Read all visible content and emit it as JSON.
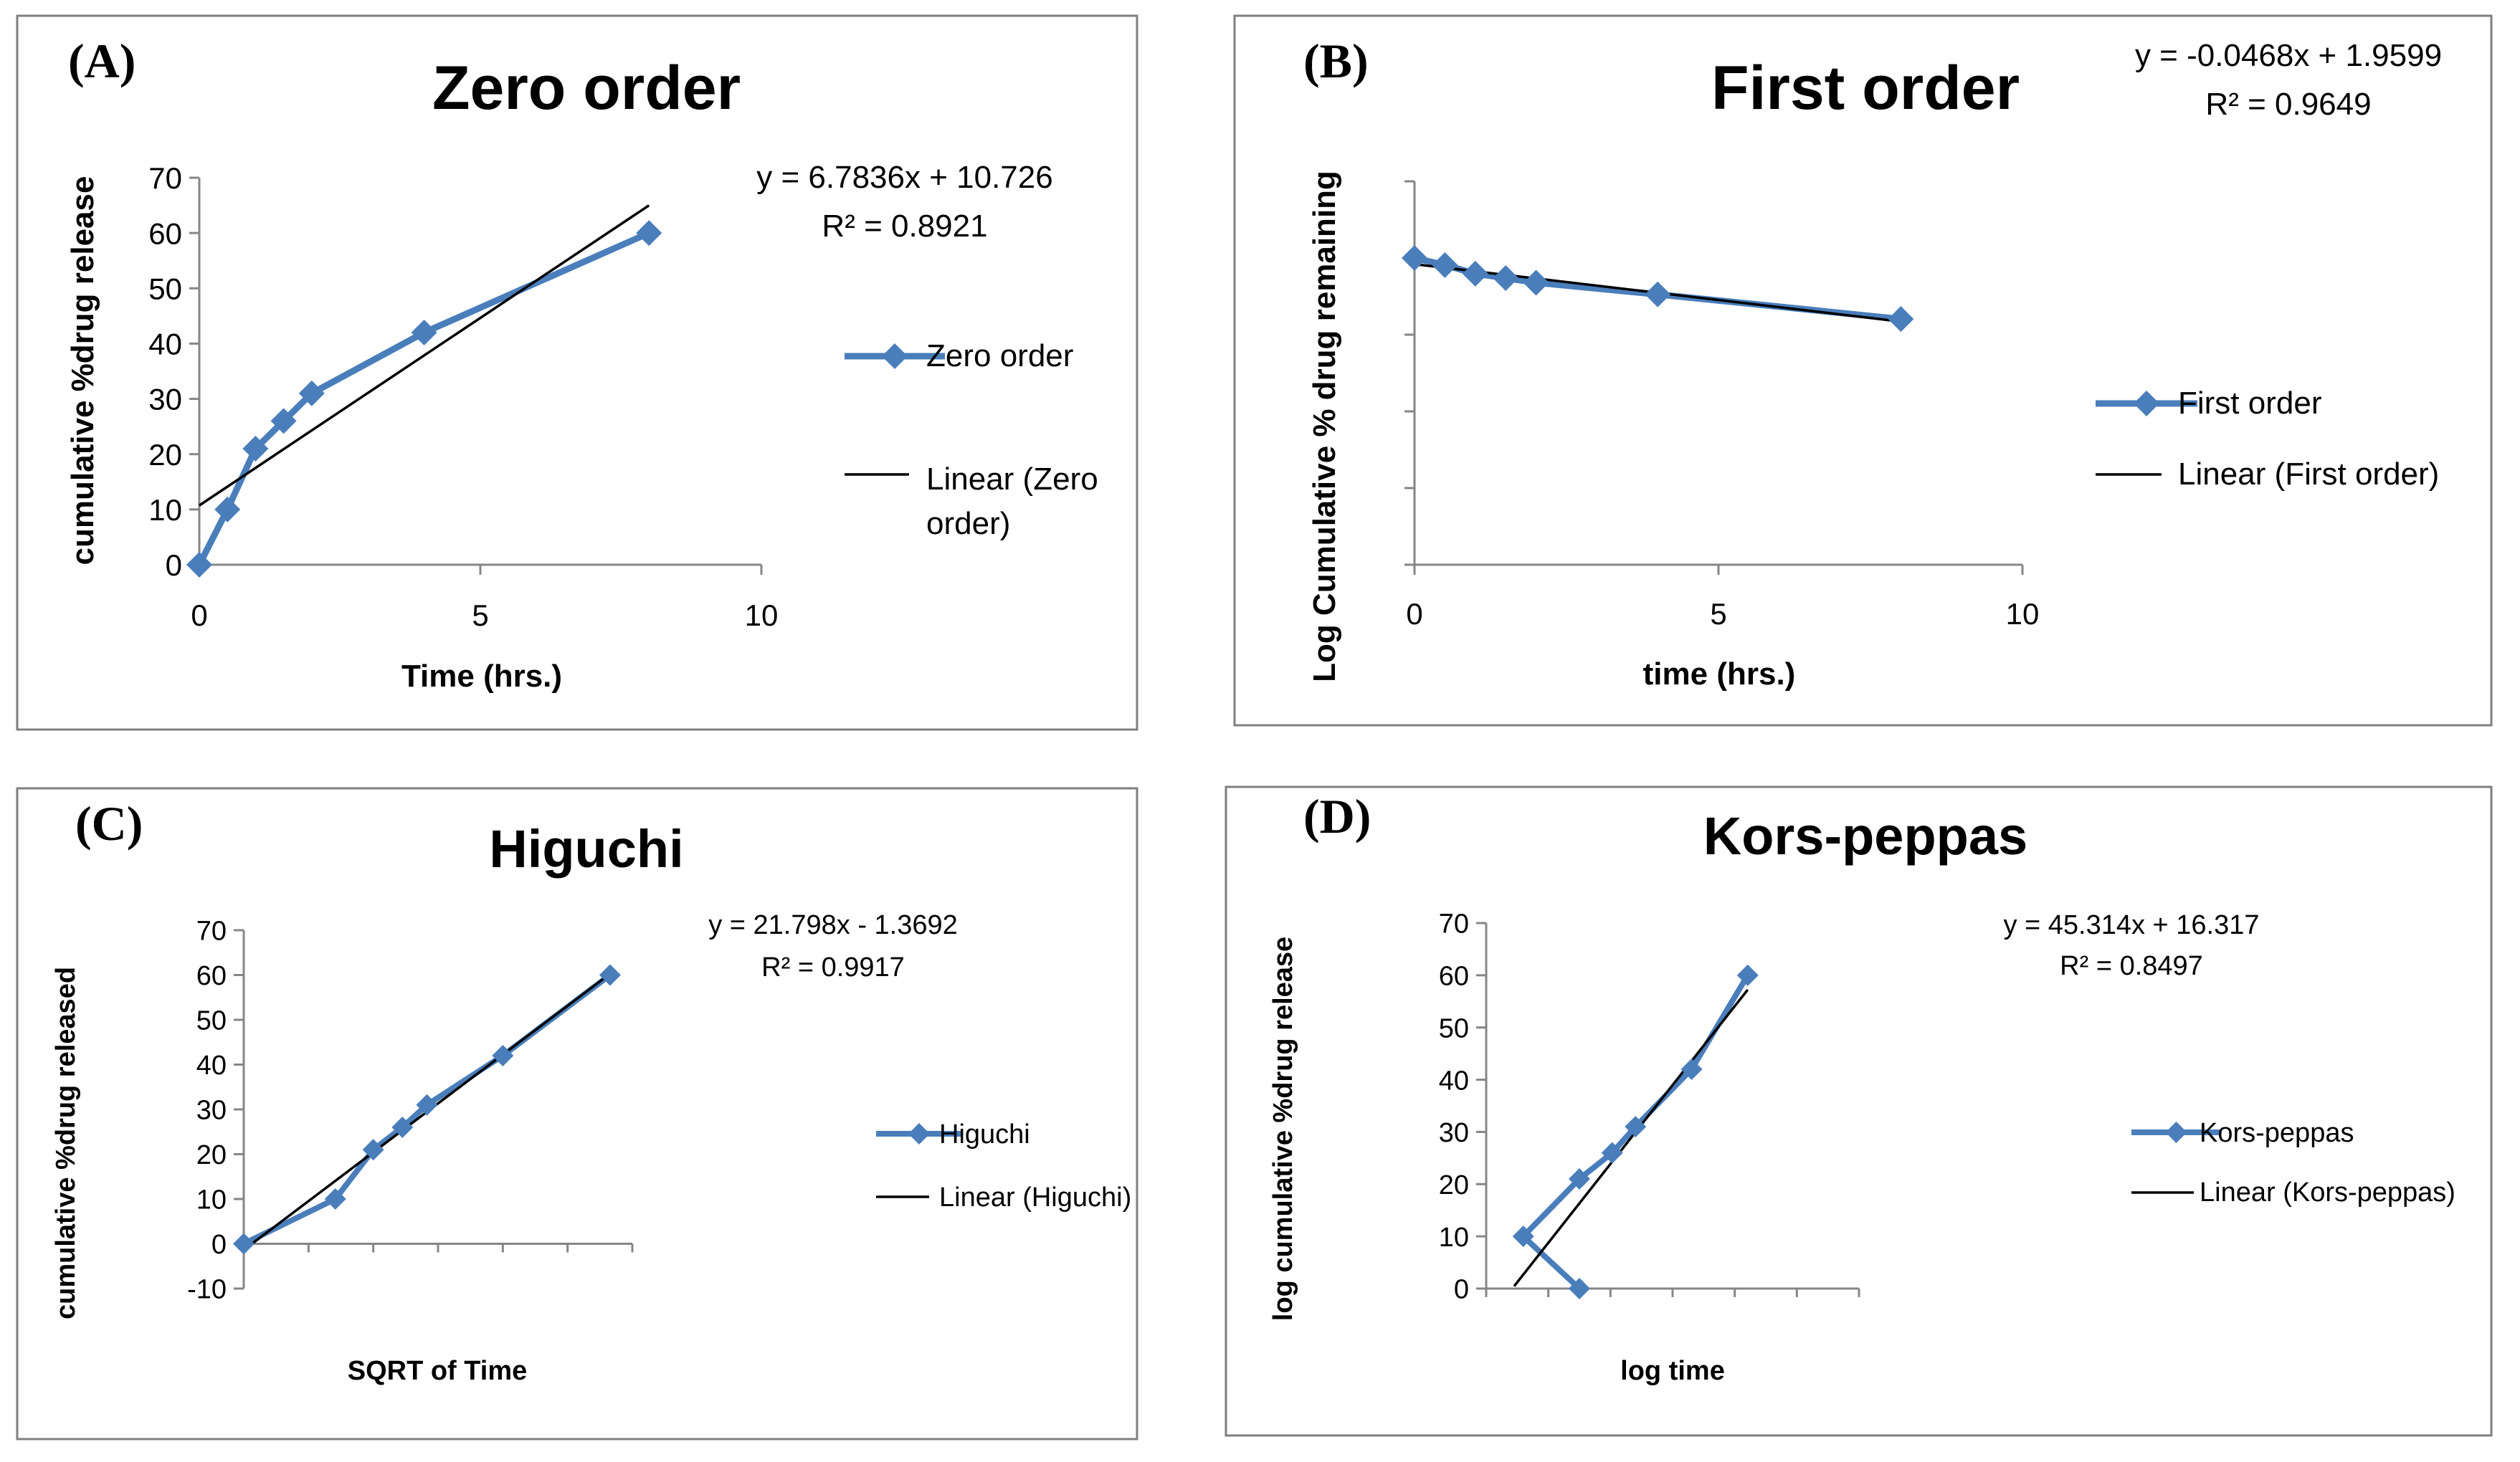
{
  "chart_data": [
    {
      "type": "line",
      "panel_label": "(A)",
      "title": "Zero order",
      "xlabel": "Time (hrs.)",
      "ylabel": "cumulative %drug release",
      "x_ticks": [
        "0",
        "5",
        "10"
      ],
      "y_ticks": [
        "0",
        "10",
        "20",
        "30",
        "40",
        "50",
        "60",
        "70"
      ],
      "xlim": [
        0,
        10
      ],
      "ylim": [
        0,
        70
      ],
      "series": [
        {
          "name": "Zero order",
          "x": [
            0,
            0.5,
            1,
            1.5,
            2,
            4,
            8
          ],
          "y": [
            0,
            10,
            21,
            26,
            31,
            42,
            60
          ]
        }
      ],
      "trendline": {
        "name": "Linear (Zero order)",
        "slope": 6.7836,
        "intercept": 10.726,
        "x_range": [
          0,
          8
        ]
      },
      "equation": "y = 6.7836x + 10.726",
      "r_squared": "R² = 0.8921",
      "legend": [
        "Zero order",
        "Linear (Zero",
        "order)"
      ],
      "colors": {
        "series": "#4a7ebb",
        "trend": "#000000"
      }
    },
    {
      "type": "line",
      "panel_label": "(B)",
      "title": "First order",
      "xlabel": "time (hrs.)",
      "ylabel": "Log Cumulative % drug remaining",
      "x_ticks": [
        "0",
        "5",
        "10"
      ],
      "y_ticks": [],
      "xlim": [
        0,
        10
      ],
      "ylim": [
        0,
        2.5
      ],
      "series": [
        {
          "name": "First order",
          "x": [
            0,
            0.5,
            1,
            1.5,
            2,
            4,
            8
          ],
          "y": [
            2.0,
            1.954,
            1.898,
            1.869,
            1.839,
            1.763,
            1.602
          ]
        }
      ],
      "trendline": {
        "name": "Linear (First order)",
        "slope": -0.0468,
        "intercept": 1.9599,
        "x_range": [
          0,
          8
        ]
      },
      "equation": "y = -0.0468x + 1.9599",
      "r_squared": "R² = 0.9649",
      "legend": [
        "First order",
        "Linear (First order)"
      ],
      "colors": {
        "series": "#4a7ebb",
        "trend": "#000000"
      }
    },
    {
      "type": "line",
      "panel_label": "(C)",
      "title": "Higuchi",
      "xlabel": "SQRT of Time",
      "ylabel": "cumulative %drug released",
      "x_ticks": [],
      "y_ticks": [
        "-10",
        "0",
        "10",
        "20",
        "30",
        "40",
        "50",
        "60",
        "70"
      ],
      "xlim": [
        0,
        3
      ],
      "ylim": [
        -10,
        70
      ],
      "series": [
        {
          "name": "Higuchi",
          "x": [
            0,
            0.707,
            1,
            1.225,
            1.414,
            2,
            2.828
          ],
          "y": [
            0,
            10,
            21,
            26,
            31,
            42,
            60
          ]
        }
      ],
      "trendline": {
        "name": "Linear (Higuchi)",
        "slope": 21.798,
        "intercept": -1.3692,
        "x_range": [
          0,
          2.828
        ]
      },
      "equation": "y = 21.798x - 1.3692",
      "r_squared": "R² = 0.9917",
      "legend": [
        "Higuchi",
        "Linear (Higuchi)"
      ],
      "colors": {
        "series": "#4a7ebb",
        "trend": "#000000"
      }
    },
    {
      "type": "line",
      "panel_label": "(D)",
      "title": "Kors-peppas",
      "xlabel": "log time",
      "ylabel": "log cumulative %drug release",
      "x_ticks": [],
      "y_ticks": [
        "0",
        "10",
        "20",
        "30",
        "40",
        "50",
        "60",
        "70"
      ],
      "xlim": [
        -0.5,
        1.5
      ],
      "ylim": [
        0,
        70
      ],
      "series": [
        {
          "name": "Kors-peppas",
          "x": [
            0,
            -0.301,
            0,
            0.176,
            0.301,
            0.602,
            0.903
          ],
          "y": [
            0,
            10,
            21,
            26,
            31,
            42,
            60
          ]
        }
      ],
      "trendline": {
        "name": "Linear (Kors-peppas)",
        "slope": 45.314,
        "intercept": 16.317,
        "x_range": [
          -0.35,
          0.903
        ]
      },
      "equation": "y = 45.314x + 16.317",
      "r_squared": "R² = 0.8497",
      "legend": [
        "Kors-peppas",
        "Linear (Kors-peppas)"
      ],
      "colors": {
        "series": "#4a7ebb",
        "trend": "#000000"
      }
    }
  ]
}
